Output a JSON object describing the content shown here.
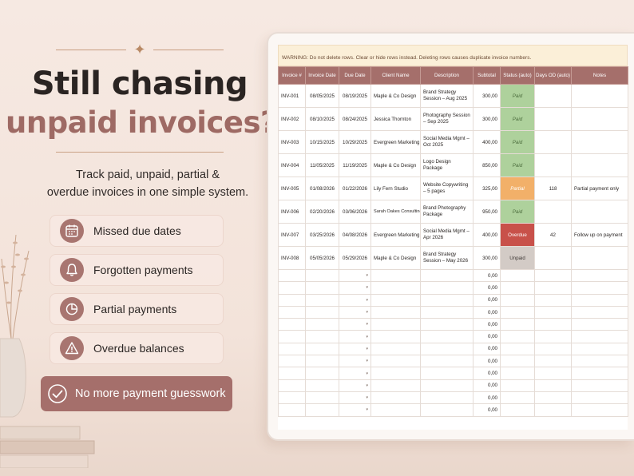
{
  "headline": {
    "line1": "Still chasing",
    "line2": "unpaid invoices?"
  },
  "subtitle": {
    "line1": "Track paid, unpaid, partial &",
    "line2": "overdue invoices in one simple system."
  },
  "features": [
    {
      "label": "Missed due dates",
      "icon": "calendar-icon"
    },
    {
      "label": "Forgotten payments",
      "icon": "bell-icon"
    },
    {
      "label": "Partial payments",
      "icon": "pie-chart-icon"
    },
    {
      "label": "Overdue balances",
      "icon": "warning-icon"
    }
  ],
  "cta": {
    "label": "No more payment guesswork",
    "icon": "check-circle-icon"
  },
  "sheet": {
    "warning": "WARNING: Do not delete rows. Clear or hide rows instead. Deleting rows causes duplicate invoice numbers.",
    "headers": [
      "Invoice #",
      "Invoice Date",
      "Due Date",
      "Client Name",
      "Description",
      "Subtotal",
      "Status (auto)",
      "Days OD (auto)",
      "Notes"
    ],
    "rows": [
      {
        "inv": "INV-001",
        "date": "08/05/2025",
        "due": "08/19/2025",
        "client": "Maple & Co Design",
        "desc": "Brand Strategy Session – Aug 2025",
        "subtotal": "300,00",
        "status": "Paid",
        "days": "",
        "notes": ""
      },
      {
        "inv": "INV-002",
        "date": "08/10/2025",
        "due": "08/24/2025",
        "client": "Jessica Thornton",
        "desc": "Photography Session – Sep 2025",
        "subtotal": "300,00",
        "status": "Paid",
        "days": "",
        "notes": ""
      },
      {
        "inv": "INV-003",
        "date": "10/15/2025",
        "due": "10/29/2025",
        "client": "Evergreen Marketing",
        "desc": "Social Media Mgmt – Oct 2025",
        "subtotal": "400,00",
        "status": "Paid",
        "days": "",
        "notes": ""
      },
      {
        "inv": "INV-004",
        "date": "11/05/2025",
        "due": "11/19/2025",
        "client": "Maple & Co Design",
        "desc": "Logo Design Package",
        "subtotal": "850,00",
        "status": "Paid",
        "days": "",
        "notes": ""
      },
      {
        "inv": "INV-005",
        "date": "01/08/2026",
        "due": "01/22/2026",
        "client": "Lily Fern Studio",
        "desc": "Website Copywriting – 5 pages",
        "subtotal": "325,00",
        "status": "Partial",
        "days": "118",
        "notes": "Partial payment only"
      },
      {
        "inv": "INV-006",
        "date": "02/20/2026",
        "due": "03/06/2026",
        "client": "Sarah Oakes Consulting",
        "desc": "Brand Photography Package",
        "subtotal": "950,00",
        "status": "Paid",
        "days": "",
        "notes": ""
      },
      {
        "inv": "INV-007",
        "date": "03/25/2026",
        "due": "04/08/2026",
        "client": "Evergreen Marketing",
        "desc": "Social Media Mgmt – Apr 2026",
        "subtotal": "400,00",
        "status": "Overdue",
        "days": "42",
        "notes": "Follow up on payment"
      },
      {
        "inv": "INV-008",
        "date": "05/05/2026",
        "due": "05/29/2026",
        "client": "Maple & Co Design",
        "desc": "Brand Strategy Session – May 2026",
        "subtotal": "300,00",
        "status": "Unpaid",
        "days": "",
        "notes": ""
      }
    ],
    "empty_subtotal": "0,00",
    "empty_row_count": 12,
    "status_colors": {
      "Paid": "#aed19c",
      "Partial": "#f2b069",
      "Overdue": "#c8514a",
      "Unpaid": "#d3cbc6"
    }
  }
}
